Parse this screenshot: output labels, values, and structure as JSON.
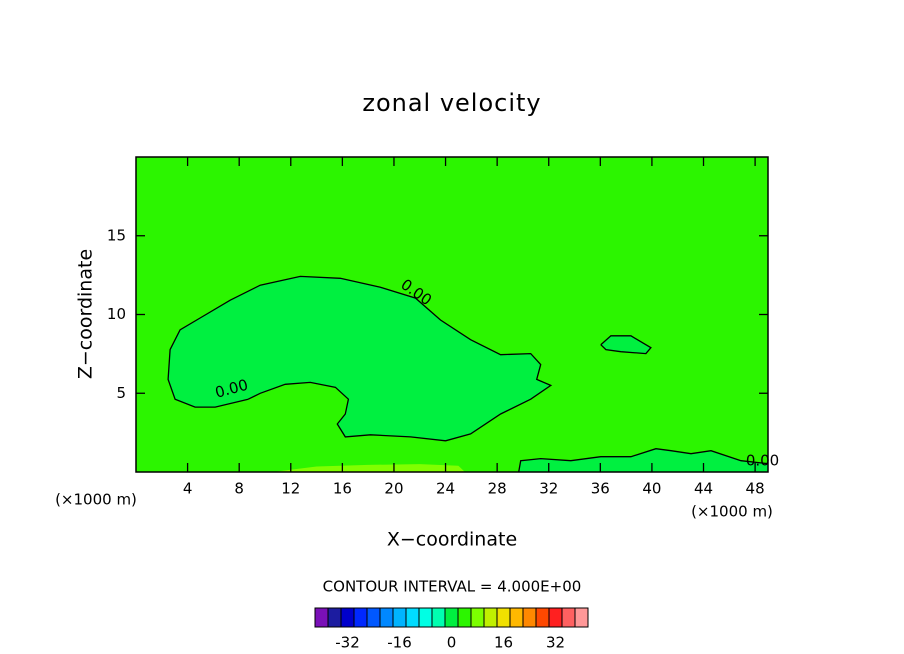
{
  "chart_data": {
    "type": "contour",
    "title": "zonal velocity",
    "xlabel": "X−coordinate",
    "ylabel": "Z−coordinate",
    "x_unit_label": "(×1000 m)",
    "contour_interval_label": "CONTOUR INTERVAL = 4.000E+00",
    "background": "#2cf500",
    "xlim": [
      0,
      49
    ],
    "ylim": [
      0,
      20
    ],
    "xticks": [
      4,
      8,
      12,
      16,
      20,
      24,
      28,
      32,
      36,
      40,
      44,
      48
    ],
    "yticks": [
      5,
      10,
      15
    ],
    "regions": [
      {
        "color": "#00f040",
        "x": [
          8.7,
          6.14,
          4.58,
          3.03,
          2.49,
          2.64,
          3.42,
          4.97,
          7.3,
          9.63,
          12.74,
          15.84,
          18.95,
          21.67,
          23.61,
          25.94,
          28.27,
          30.6,
          31.38,
          31.07,
          32.16,
          30.6,
          28.27,
          25.94,
          24.0,
          21.28,
          18.17,
          16.23,
          15.61,
          16.23,
          16.47,
          15.46,
          13.51,
          11.57,
          9.63
        ],
        "y": [
          4.62,
          4.12,
          4.12,
          4.62,
          5.88,
          7.77,
          9.03,
          9.78,
          10.91,
          11.86,
          12.42,
          12.3,
          11.73,
          11.04,
          9.65,
          8.4,
          7.45,
          7.52,
          6.82,
          5.88,
          5.5,
          4.62,
          3.68,
          2.42,
          1.98,
          2.23,
          2.36,
          2.23,
          3.05,
          3.68,
          4.62,
          5.38,
          5.69,
          5.57,
          5.0
        ]
      },
      {
        "color": "#00f040",
        "x": [
          36.04,
          36.82,
          38.37,
          39.92,
          39.53,
          37.59,
          36.43
        ],
        "y": [
          8.08,
          8.65,
          8.65,
          7.89,
          7.52,
          7.64,
          7.77
        ]
      },
      {
        "color": "#00f040",
        "x": [
          29.67,
          29.83,
          31.38,
          33.71,
          36.04,
          38.37,
          40.31,
          41.48,
          43.03,
          44.58,
          46.91,
          49.0,
          49.0
        ],
        "y": [
          0.0,
          0.72,
          0.85,
          0.72,
          0.97,
          0.97,
          1.48,
          1.35,
          1.16,
          1.35,
          0.72,
          0.53,
          0.0
        ]
      },
      {
        "color": "#80ff00",
        "x": [
          10.6,
          14.0,
          18.0,
          22.0,
          25.0,
          25.5,
          10.6
        ],
        "y": [
          0.0,
          0.35,
          0.45,
          0.5,
          0.4,
          0.0,
          0.0
        ]
      }
    ],
    "contours": [
      {
        "label": "0.00",
        "x": [
          8.7,
          6.14,
          4.58,
          3.03,
          2.49,
          2.64,
          3.42,
          4.97,
          7.3,
          9.63,
          12.74,
          15.84,
          18.95,
          21.67,
          23.61,
          25.94,
          28.27,
          30.6,
          31.38,
          31.07,
          32.16,
          30.6,
          28.27,
          25.94,
          24.0,
          21.28,
          18.17,
          16.23,
          15.61,
          16.23,
          16.47,
          15.46,
          13.51,
          11.57,
          9.63,
          8.7
        ],
        "y": [
          4.62,
          4.12,
          4.12,
          4.62,
          5.88,
          7.77,
          9.03,
          9.78,
          10.91,
          11.86,
          12.42,
          12.3,
          11.73,
          11.04,
          9.65,
          8.4,
          7.45,
          7.52,
          6.82,
          5.88,
          5.5,
          4.62,
          3.68,
          2.42,
          1.98,
          2.23,
          2.36,
          2.23,
          3.05,
          3.68,
          4.62,
          5.38,
          5.69,
          5.57,
          5.0,
          4.62
        ]
      },
      {
        "label": "0.00",
        "x": [
          36.04,
          36.82,
          38.37,
          39.92,
          39.53,
          37.59,
          36.43,
          36.04
        ],
        "y": [
          8.08,
          8.65,
          8.65,
          7.89,
          7.52,
          7.64,
          7.77,
          8.08
        ]
      },
      {
        "label": "0.00",
        "x": [
          29.67,
          29.83,
          31.38,
          33.71,
          36.04,
          38.37,
          40.31,
          41.48,
          43.03,
          44.58,
          46.91,
          49.0
        ],
        "y": [
          0.0,
          0.72,
          0.85,
          0.72,
          0.97,
          0.97,
          1.48,
          1.35,
          1.16,
          1.35,
          0.72,
          0.53
        ]
      }
    ],
    "colorbar": {
      "levels": [
        -42,
        -38,
        -34,
        -30,
        -26,
        -22,
        -18,
        -14,
        -10,
        -6,
        -2,
        2,
        6,
        10,
        14,
        18,
        22,
        26,
        30,
        34,
        38,
        42
      ],
      "colors": [
        "#7a10b8",
        "#1c1ca0",
        "#0000cc",
        "#0028ff",
        "#0058ff",
        "#0088ff",
        "#00b4ff",
        "#00dcff",
        "#00ffe4",
        "#00ffb0",
        "#00f040",
        "#2cf500",
        "#7cff00",
        "#c0f000",
        "#f0e000",
        "#ffb800",
        "#ff8800",
        "#ff4800",
        "#ff2020",
        "#ff6060",
        "#ff9898"
      ],
      "ticks": [
        -32,
        -16,
        0,
        16,
        32
      ]
    }
  }
}
